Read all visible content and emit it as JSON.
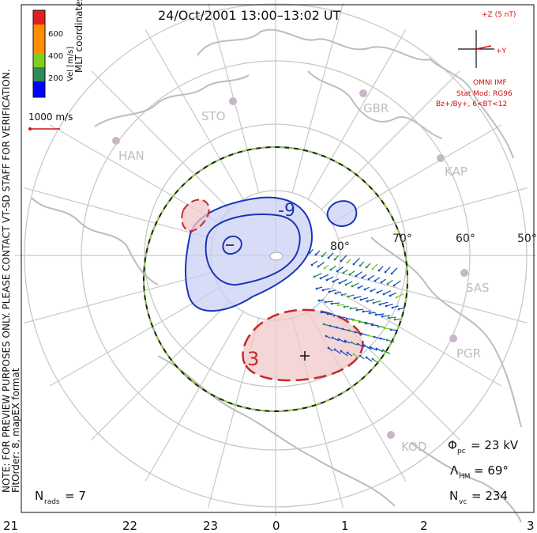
{
  "title": "24/Oct/2001  13:00–13:02 UT",
  "coordinates_label": "MLT coordinates",
  "velocity_scale": {
    "title": "Vel [m/s]",
    "ticks": [
      "600",
      "400",
      "200"
    ],
    "colors": [
      "#e02020",
      "#ff8c00",
      "#7fcf20",
      "#2e8b57",
      "#1e50c8",
      "#0000ff"
    ]
  },
  "vector_scale_label": "1000 m/s",
  "imf": {
    "z_label": "+Z (5 nT)",
    "y_label": "+Y",
    "source": "OMNI IMF",
    "stat_mod": "Stat Mod: RG96",
    "condition": "Bz+/By+, 6<BT<12"
  },
  "notice": "NOTE: FOR PREVIEW PURPOSES ONLY. PLEASE CONTACT VT-SD STAFF FOR VERIFICATION.",
  "fit_order": "FitOrder: 8, mapEX format",
  "radar_sites": [
    {
      "name": "STO"
    },
    {
      "name": "GBR"
    },
    {
      "name": "HAN"
    },
    {
      "name": "KAP"
    },
    {
      "name": "SAS"
    },
    {
      "name": "PGR"
    },
    {
      "name": "KOD"
    }
  ],
  "latitude_labels": [
    "80°",
    "70°",
    "60°",
    "50°"
  ],
  "mlt_labels": [
    "21",
    "22",
    "23",
    "0",
    "1",
    "2",
    "3"
  ],
  "contours": {
    "negative": "-9",
    "positive": "3"
  },
  "stats": {
    "phi_pc_symbol": "Φ",
    "phi_pc_sub": "pc",
    "phi_pc_value": "= 23 kV",
    "lambda_symbol": "Λ",
    "lambda_sub": "HM",
    "lambda_value": "= 69°",
    "nvc_symbol": "N",
    "nvc_sub": "vc",
    "nvc_value": "= 234",
    "nrads_symbol": "N",
    "nrads_sub": "rads",
    "nrads_value": "= 7"
  }
}
